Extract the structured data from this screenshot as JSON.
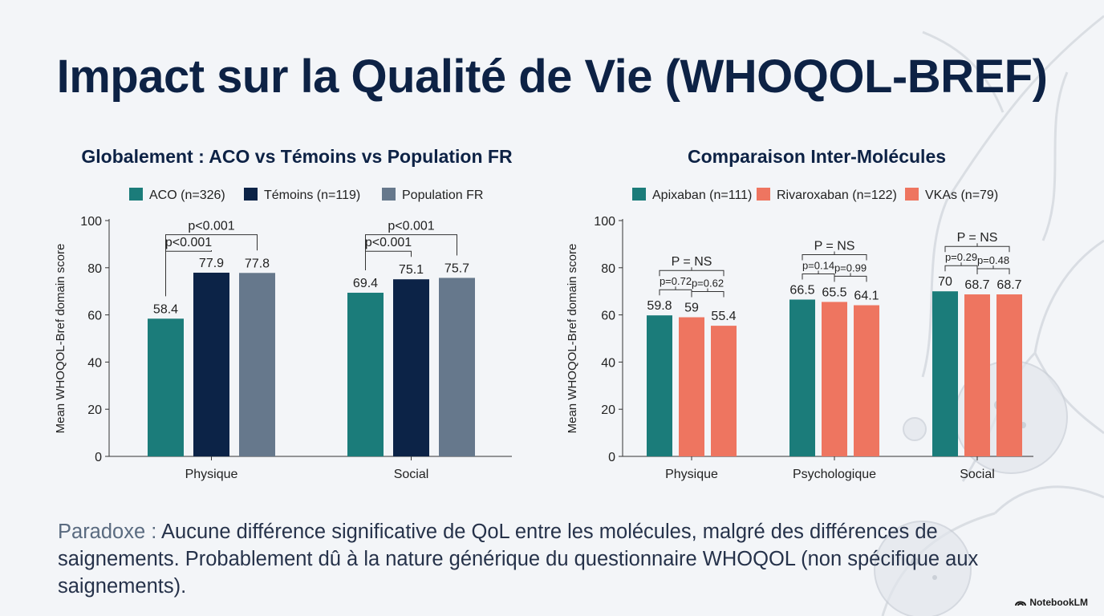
{
  "title": "Impact sur la Qualité de Vie (WHOQOL-BREF)",
  "footer": {
    "lead": "Paradoxe :",
    "text": " Aucune différence significative de QoL entre les molécules, malgré des différences de saignements. Probablement dû à la nature générique du questionnaire WHOQOL (non spécifique aux saignements)."
  },
  "brand": {
    "label": "NotebookLM",
    "icon": "notebooklm-logo-icon"
  },
  "chart_data": [
    {
      "type": "bar",
      "title": "Globalement : ACO vs Témoins vs Population FR",
      "categories": [
        "Physique",
        "Social"
      ],
      "series": [
        {
          "name": "ACO (n=326)",
          "values": [
            58.4,
            69.4
          ],
          "color": "#1b7c7a"
        },
        {
          "name": "Témoins (n=119)",
          "values": [
            77.9,
            75.1
          ],
          "color": "#0c2347"
        },
        {
          "name": "Population FR",
          "values": [
            77.8,
            75.7
          ],
          "color": "#66788c"
        }
      ],
      "ylabel": "Mean WHOQOL-Bref domain score",
      "ylim": [
        0,
        100
      ],
      "yticks": [
        0,
        20,
        40,
        60,
        80,
        100
      ],
      "legend": "top",
      "grid": false,
      "annotations": [
        {
          "category": 0,
          "from": 0,
          "to": 2,
          "label": "p<0.001",
          "level": 2
        },
        {
          "category": 0,
          "from": 0,
          "to": 1,
          "label": "p<0.001",
          "level": 1
        },
        {
          "category": 1,
          "from": 0,
          "to": 2,
          "label": "p<0.001",
          "level": 2
        },
        {
          "category": 1,
          "from": 0,
          "to": 1,
          "label": "p<0.001",
          "level": 1
        }
      ]
    },
    {
      "type": "bar",
      "title": "Comparaison Inter-Molécules",
      "categories": [
        "Physique",
        "Psychologique",
        "Social"
      ],
      "series": [
        {
          "name": "Apixaban (n=111)",
          "values": [
            59.8,
            66.5,
            70
          ],
          "color": "#1b7c7a"
        },
        {
          "name": "Rivaroxaban (n=122)",
          "values": [
            59,
            65.5,
            68.7
          ],
          "color": "#ee7560"
        },
        {
          "name": "VKAs (n=79)",
          "values": [
            55.4,
            64.1,
            68.7
          ],
          "color": "#ee7560"
        }
      ],
      "ylabel": "Mean WHOQOL-Bref domain score",
      "ylim": [
        0,
        100
      ],
      "yticks": [
        0,
        20,
        40,
        60,
        80,
        100
      ],
      "legend": "top",
      "grid": false,
      "annotations": [
        {
          "category": 0,
          "from": 0,
          "to": 1,
          "label": "p=0.72",
          "level": 1
        },
        {
          "category": 0,
          "from": 1,
          "to": 2,
          "label": "p=0.62",
          "level": 1
        },
        {
          "category": 0,
          "from": 0,
          "to": 2,
          "label": "P = NS",
          "level": 2
        },
        {
          "category": 1,
          "from": 0,
          "to": 1,
          "label": "p=0.14",
          "level": 1
        },
        {
          "category": 1,
          "from": 1,
          "to": 2,
          "label": "p=0.99",
          "level": 1
        },
        {
          "category": 1,
          "from": 0,
          "to": 2,
          "label": "P = NS",
          "level": 2
        },
        {
          "category": 2,
          "from": 0,
          "to": 1,
          "label": "p=0.29",
          "level": 1
        },
        {
          "category": 2,
          "from": 1,
          "to": 2,
          "label": "p=0.48",
          "level": 1
        },
        {
          "category": 2,
          "from": 0,
          "to": 2,
          "label": "P = NS",
          "level": 2
        }
      ]
    }
  ]
}
